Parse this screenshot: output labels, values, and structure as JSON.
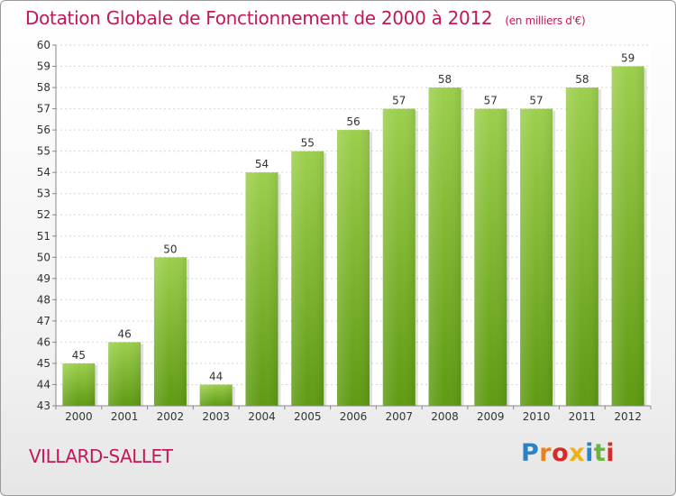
{
  "chart_data": {
    "type": "bar",
    "title": "Dotation Globale de Fonctionnement de 2000 à 2012",
    "subtitle": "(en milliers d'€)",
    "categories": [
      "2000",
      "2001",
      "2002",
      "2003",
      "2004",
      "2005",
      "2006",
      "2007",
      "2008",
      "2009",
      "2010",
      "2011",
      "2012"
    ],
    "values": [
      45,
      46,
      50,
      44,
      54,
      55,
      56,
      57,
      58,
      57,
      57,
      58,
      59
    ],
    "ylim": [
      43,
      60
    ],
    "yticks": [
      43,
      44,
      45,
      46,
      47,
      48,
      49,
      50,
      51,
      52,
      53,
      54,
      55,
      56,
      57,
      58,
      59,
      60
    ],
    "grid": true,
    "bar_color_top": "#9ccf4c",
    "bar_color_bottom": "#5e9a12"
  },
  "footer": {
    "place_name": "VILLARD-SALLET",
    "logo_text": "Proxiti",
    "logo_colors": [
      "#2a83c6",
      "#e8821e",
      "#d62b2b",
      "#f0b114",
      "#2a83c6",
      "#6cb33f",
      "#d62b2b"
    ]
  }
}
